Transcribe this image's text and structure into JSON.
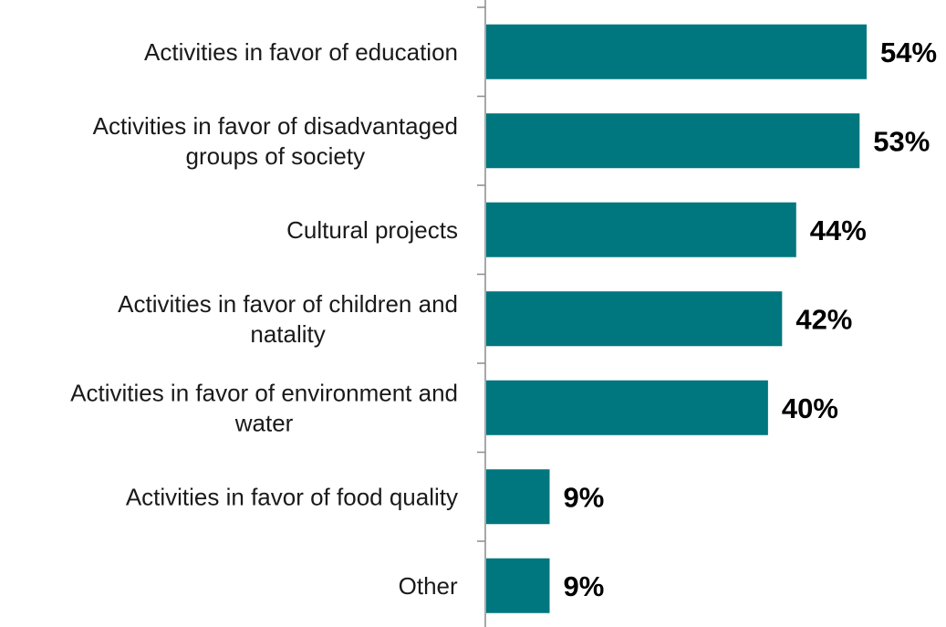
{
  "chart_data": {
    "type": "bar",
    "orientation": "horizontal",
    "categories": [
      "Activities in favor of education",
      "Activities in favor of disadvantaged groups of society",
      "Cultural projects",
      "Activities in favor of children and natality",
      "Activities in favor of environment and water",
      "Activities in favor of food quality",
      "Other"
    ],
    "category_lines": [
      [
        "Activities in favor of education"
      ],
      [
        "Activities in favor of disadvantaged",
        "groups of society"
      ],
      [
        "Cultural projects"
      ],
      [
        "Activities in favor of children and",
        "natality"
      ],
      [
        "Activities in favor of environment and",
        "water"
      ],
      [
        "Activities in favor of food quality"
      ],
      [
        "Other"
      ]
    ],
    "values": [
      54,
      53,
      44,
      42,
      40,
      9,
      9
    ],
    "data_labels": [
      "54%",
      "53%",
      "44%",
      "42%",
      "40%",
      "9%",
      "9%"
    ],
    "xlim": [
      0,
      54
    ],
    "grid": false,
    "legend": "none",
    "bar_color": "#00767f",
    "axis_color": "#8c8c8c"
  }
}
